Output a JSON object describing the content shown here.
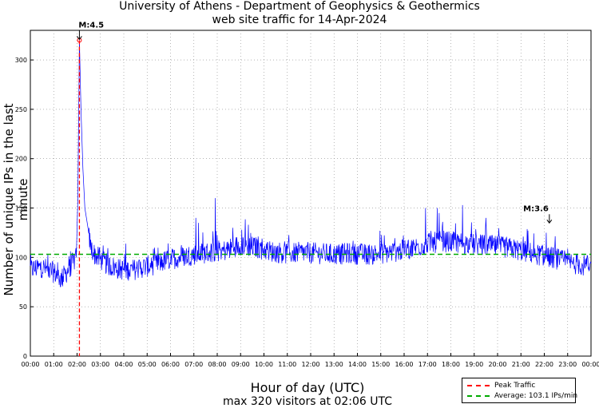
{
  "chart_data": {
    "type": "line",
    "title": "University of Athens - Department of Geophysics & Geothermics",
    "subtitle": "web site traffic for 14-Apr-2024",
    "xlabel": "Hour of day (UTC)",
    "ylabel": "Number of unique IPs in the last minute",
    "footer": "max 320 visitors at 02:06 UTC",
    "xlim_minutes": [
      0,
      1440
    ],
    "ylim": [
      0,
      330
    ],
    "yticks": [
      0,
      50,
      100,
      150,
      200,
      250,
      300
    ],
    "xtick_labels": [
      "00:00",
      "01:00",
      "02:00",
      "03:00",
      "04:00",
      "05:00",
      "06:00",
      "07:00",
      "08:00",
      "09:00",
      "10:00",
      "11:00",
      "12:00",
      "13:00",
      "14:00",
      "15:00",
      "16:00",
      "17:00",
      "18:00",
      "19:00",
      "20:00",
      "21:00",
      "22:00",
      "23:00",
      "00:00"
    ],
    "grid": true,
    "series": [
      {
        "name": "traffic",
        "color": "#0000ff",
        "approx_points": [
          [
            0,
            88
          ],
          [
            30,
            90
          ],
          [
            60,
            85
          ],
          [
            80,
            78
          ],
          [
            95,
            86
          ],
          [
            118,
            100
          ],
          [
            122,
            160
          ],
          [
            126,
            320
          ],
          [
            130,
            250
          ],
          [
            135,
            190
          ],
          [
            140,
            150
          ],
          [
            148,
            130
          ],
          [
            155,
            110
          ],
          [
            165,
            103
          ],
          [
            180,
            98
          ],
          [
            200,
            92
          ],
          [
            230,
            88
          ],
          [
            260,
            87
          ],
          [
            290,
            90
          ],
          [
            320,
            93
          ],
          [
            350,
            97
          ],
          [
            380,
            100
          ],
          [
            420,
            103
          ],
          [
            460,
            105
          ],
          [
            500,
            107
          ],
          [
            540,
            113
          ],
          [
            580,
            110
          ],
          [
            620,
            106
          ],
          [
            660,
            104
          ],
          [
            700,
            105
          ],
          [
            740,
            104
          ],
          [
            780,
            103
          ],
          [
            820,
            104
          ],
          [
            860,
            103
          ],
          [
            900,
            104
          ],
          [
            940,
            106
          ],
          [
            980,
            109
          ],
          [
            1020,
            114
          ],
          [
            1060,
            116
          ],
          [
            1100,
            115
          ],
          [
            1140,
            113
          ],
          [
            1180,
            112
          ],
          [
            1220,
            110
          ],
          [
            1260,
            107
          ],
          [
            1300,
            103
          ],
          [
            1340,
            100
          ],
          [
            1380,
            95
          ],
          [
            1420,
            92
          ],
          [
            1440,
            90
          ]
        ],
        "spikes": [
          [
            425,
            140
          ],
          [
            432,
            135
          ],
          [
            475,
            160
          ],
          [
            520,
            130
          ],
          [
            560,
            133
          ],
          [
            1015,
            150
          ],
          [
            1045,
            150
          ],
          [
            1050,
            145
          ],
          [
            1110,
            153
          ],
          [
            1170,
            140
          ],
          [
            1325,
            125
          ]
        ]
      }
    ],
    "peak_line": {
      "name": "Peak Traffic",
      "x_minutes": 126,
      "color": "#ff0000"
    },
    "average_line": {
      "name": "Average: 103.1 IPs/min",
      "y": 103.1,
      "color": "#00aa00"
    },
    "annotations": [
      {
        "text": "M:4.5",
        "x_minutes": 126,
        "y": 320
      },
      {
        "text": "M:3.6",
        "x_minutes": 1333,
        "y": 134
      }
    ],
    "legend_placement": "bottom-right"
  }
}
